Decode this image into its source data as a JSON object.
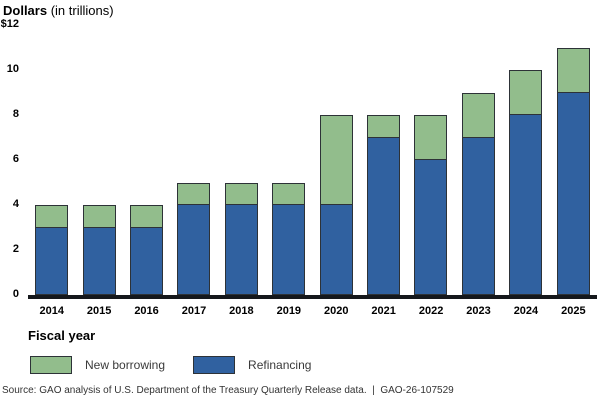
{
  "title": {
    "bold": "Dollars",
    "rest": " (in trillions)"
  },
  "source": "Source: GAO analysis of U.S. Department of the Treasury Quarterly Release data.  |  GAO-26-107529",
  "colors": {
    "new_borrowing": "#92BD8C",
    "refinancing": "#3061A0",
    "bar_border": "#2d3237",
    "axis_line": "#15181c"
  },
  "chart_data": {
    "type": "bar",
    "stacked": true,
    "title": "Dollars (in trillions)",
    "xlabel": "Fiscal year",
    "ylabel": "Dollars (in trillions)",
    "categories": [
      "2014",
      "2015",
      "2016",
      "2017",
      "2018",
      "2019",
      "2020",
      "2021",
      "2022",
      "2023",
      "2024",
      "2025"
    ],
    "series": [
      {
        "name": "Refinancing",
        "color": "#3061A0",
        "values": [
          3,
          3,
          3,
          4,
          4,
          4,
          4,
          7,
          6,
          7,
          8,
          9
        ]
      },
      {
        "name": "New borrowing",
        "color": "#92BD8C",
        "values": [
          1,
          1,
          1,
          1,
          1,
          1,
          4,
          1,
          2,
          2,
          2,
          2
        ]
      }
    ],
    "totals": [
      4,
      4,
      4,
      5,
      5,
      5,
      8,
      8,
      8,
      9,
      10,
      11
    ],
    "ylim": [
      0,
      12
    ],
    "yticks": {
      "values": [
        12,
        10,
        8,
        6,
        4,
        2,
        0
      ],
      "labels": [
        "$12",
        "10",
        "8",
        "6",
        "4",
        "2",
        "0"
      ]
    },
    "grid": false,
    "legend_position": "bottom",
    "legend": [
      {
        "label": "New borrowing",
        "color": "#92BD8C"
      },
      {
        "label": "Refinancing",
        "color": "#3061A0"
      }
    ]
  }
}
